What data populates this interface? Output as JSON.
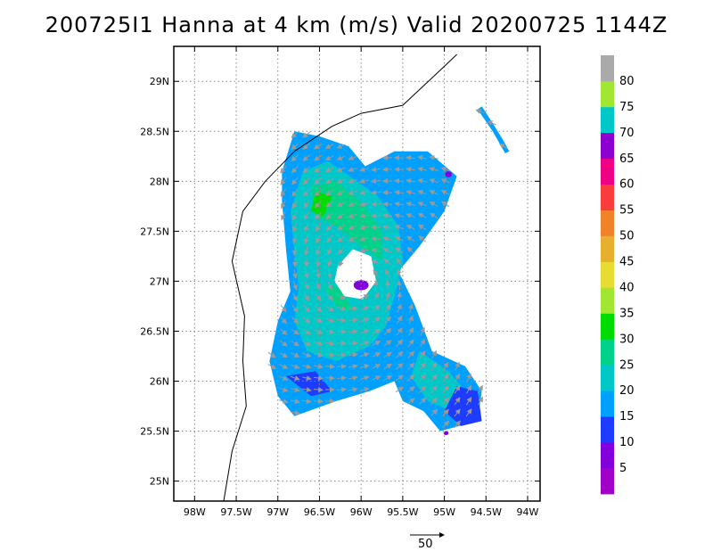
{
  "title": "200725I1 Hanna at 4 km (m/s) Valid 20200725 1144Z",
  "map": {
    "lon_range": [
      -98.25,
      -93.85
    ],
    "lat_range": [
      24.8,
      29.35
    ],
    "lon_ticks": [
      {
        "value": -98.0,
        "label": "98W"
      },
      {
        "value": -97.5,
        "label": "97.5W"
      },
      {
        "value": -97.0,
        "label": "97W"
      },
      {
        "value": -96.5,
        "label": "96.5W"
      },
      {
        "value": -96.0,
        "label": "96W"
      },
      {
        "value": -95.5,
        "label": "95.5W"
      },
      {
        "value": -95.0,
        "label": "95W"
      },
      {
        "value": -94.5,
        "label": "94.5W"
      },
      {
        "value": -94.0,
        "label": "94W"
      }
    ],
    "lat_ticks": [
      {
        "value": 25.0,
        "label": "25N"
      },
      {
        "value": 25.5,
        "label": "25.5N"
      },
      {
        "value": 26.0,
        "label": "26N"
      },
      {
        "value": 26.5,
        "label": "26.5N"
      },
      {
        "value": 27.0,
        "label": "27N"
      },
      {
        "value": 27.5,
        "label": "27.5N"
      },
      {
        "value": 28.0,
        "label": "28N"
      },
      {
        "value": 28.5,
        "label": "28.5N"
      },
      {
        "value": 29.0,
        "label": "29N"
      }
    ],
    "grid": true,
    "coastline": [
      [
        -97.65,
        24.8
      ],
      [
        -97.55,
        25.3
      ],
      [
        -97.38,
        25.75
      ],
      [
        -97.42,
        26.2
      ],
      [
        -97.4,
        26.65
      ],
      [
        -97.55,
        27.2
      ],
      [
        -97.42,
        27.7
      ],
      [
        -97.15,
        28.0
      ],
      [
        -96.8,
        28.3
      ],
      [
        -96.35,
        28.55
      ],
      [
        -96.0,
        28.68
      ],
      [
        -95.5,
        28.76
      ],
      [
        -95.0,
        29.15
      ],
      [
        -94.85,
        29.27
      ]
    ]
  },
  "wind": {
    "units": "m/s",
    "center": {
      "lon": -96.0,
      "lat": 27.02
    },
    "regions": [
      {
        "level": 20,
        "points": [
          [
            -96.8,
            28.5
          ],
          [
            -96.5,
            28.45
          ],
          [
            -96.15,
            28.35
          ],
          [
            -95.95,
            28.15
          ],
          [
            -95.6,
            28.3
          ],
          [
            -95.2,
            28.3
          ],
          [
            -94.85,
            28.05
          ],
          [
            -95.0,
            27.7
          ],
          [
            -95.3,
            27.35
          ],
          [
            -95.55,
            27.1
          ],
          [
            -95.35,
            26.75
          ],
          [
            -95.15,
            26.3
          ],
          [
            -94.75,
            26.15
          ],
          [
            -94.55,
            25.9
          ],
          [
            -94.6,
            25.6
          ],
          [
            -95.05,
            25.5
          ],
          [
            -95.25,
            25.7
          ],
          [
            -95.5,
            25.8
          ],
          [
            -95.6,
            26.0
          ],
          [
            -95.9,
            25.9
          ],
          [
            -96.3,
            25.8
          ],
          [
            -96.8,
            25.65
          ],
          [
            -97.0,
            25.85
          ],
          [
            -97.1,
            26.2
          ],
          [
            -97.0,
            26.6
          ],
          [
            -96.85,
            26.9
          ],
          [
            -96.9,
            27.3
          ],
          [
            -96.95,
            27.8
          ],
          [
            -96.95,
            28.1
          ]
        ]
      },
      {
        "level": 25,
        "points": [
          [
            -96.7,
            28.1
          ],
          [
            -96.4,
            28.2
          ],
          [
            -96.05,
            28.0
          ],
          [
            -95.8,
            27.85
          ],
          [
            -95.55,
            27.55
          ],
          [
            -95.5,
            27.2
          ],
          [
            -95.6,
            26.85
          ],
          [
            -95.7,
            26.55
          ],
          [
            -95.9,
            26.35
          ],
          [
            -96.3,
            26.2
          ],
          [
            -96.65,
            26.3
          ],
          [
            -96.8,
            26.6
          ],
          [
            -96.75,
            26.95
          ],
          [
            -96.8,
            27.3
          ],
          [
            -96.85,
            27.7
          ]
        ]
      },
      {
        "level": 25,
        "points": [
          [
            -95.3,
            26.3
          ],
          [
            -94.95,
            26.1
          ],
          [
            -94.75,
            25.9
          ],
          [
            -94.9,
            25.7
          ],
          [
            -95.2,
            25.8
          ],
          [
            -95.4,
            26.05
          ]
        ]
      },
      {
        "level": 30,
        "points": [
          [
            -96.6,
            27.95
          ],
          [
            -96.3,
            28.0
          ],
          [
            -96.0,
            27.8
          ],
          [
            -95.75,
            27.5
          ],
          [
            -95.75,
            27.2
          ],
          [
            -96.0,
            27.35
          ],
          [
            -96.3,
            27.55
          ],
          [
            -96.55,
            27.65
          ]
        ]
      },
      {
        "level": 30,
        "points": [
          [
            -96.45,
            26.95
          ],
          [
            -96.3,
            26.75
          ],
          [
            -96.1,
            26.7
          ],
          [
            -96.25,
            26.95
          ]
        ]
      },
      {
        "level": 35,
        "points": [
          [
            -96.55,
            27.9
          ],
          [
            -96.35,
            27.85
          ],
          [
            -96.45,
            27.65
          ],
          [
            -96.6,
            27.7
          ]
        ]
      },
      {
        "level": 15,
        "points": [
          [
            -94.85,
            25.95
          ],
          [
            -94.6,
            25.9
          ],
          [
            -94.55,
            25.6
          ],
          [
            -94.8,
            25.55
          ],
          [
            -95.0,
            25.7
          ]
        ]
      },
      {
        "level": 15,
        "points": [
          [
            -96.9,
            26.05
          ],
          [
            -96.6,
            25.85
          ],
          [
            -96.35,
            25.9
          ],
          [
            -96.55,
            26.1
          ]
        ]
      },
      {
        "level": 20,
        "points": [
          [
            -94.55,
            28.75
          ],
          [
            -94.45,
            28.62
          ],
          [
            -94.3,
            28.42
          ],
          [
            -94.22,
            28.3
          ],
          [
            -94.27,
            28.28
          ],
          [
            -94.42,
            28.5
          ],
          [
            -94.6,
            28.72
          ]
        ]
      }
    ],
    "eye": [
      [
        -96.28,
        27.15
      ],
      [
        -96.1,
        27.32
      ],
      [
        -95.88,
        27.25
      ],
      [
        -95.82,
        27.0
      ],
      [
        -95.98,
        26.82
      ],
      [
        -96.2,
        26.85
      ],
      [
        -96.32,
        27.0
      ]
    ],
    "spots": [
      {
        "level": 10,
        "lon": -96.0,
        "lat": 26.96,
        "rx": 0.09,
        "ry": 0.05
      },
      {
        "level": 10,
        "lon": -94.95,
        "lat": 28.07,
        "rx": 0.04,
        "ry": 0.03
      },
      {
        "level": 10,
        "lon": -94.98,
        "lat": 25.48,
        "rx": 0.03,
        "ry": 0.02
      }
    ]
  },
  "colorbar": {
    "colors": [
      "#a000c8",
      "#8200dc",
      "#1e3cff",
      "#00a0ff",
      "#00c8c8",
      "#00d28c",
      "#00dc00",
      "#a0e632",
      "#e6dc32",
      "#e6af2d",
      "#f08228",
      "#fa3c3c",
      "#f00082",
      "#8c00d0",
      "#00c8c8",
      "#a0e632",
      "#aaaaaa"
    ],
    "labels": [
      "5",
      "10",
      "15",
      "20",
      "25",
      "30",
      "35",
      "40",
      "45",
      "50",
      "55",
      "60",
      "65",
      "70",
      "75",
      "80"
    ]
  },
  "reference_vector": {
    "label": "50"
  },
  "colors": {
    "arrow": "#9a9a9a",
    "grid": "#888888",
    "coastline": "#000000",
    "frame": "#000000"
  }
}
